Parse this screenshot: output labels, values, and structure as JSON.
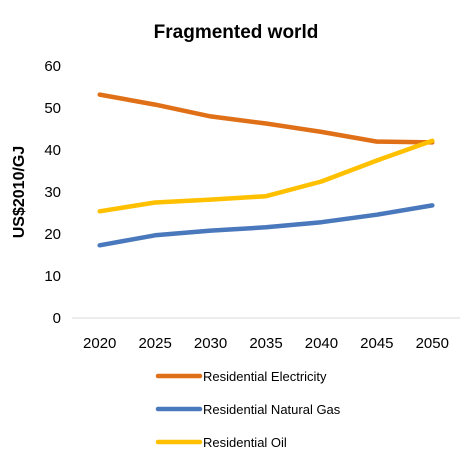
{
  "chart_data": {
    "type": "line",
    "title": "Fragmented world",
    "xlabel": "",
    "ylabel": "US$2010/GJ",
    "x": [
      "2020",
      "2025",
      "2030",
      "2035",
      "2040",
      "2045",
      "2050"
    ],
    "y_ticks": [
      "0",
      "10",
      "20",
      "30",
      "40",
      "50",
      "60"
    ],
    "ylim": [
      0,
      60
    ],
    "grid": false,
    "legend_position": "bottom",
    "series": [
      {
        "name": "Residential Electricity",
        "color": "#E07018",
        "values": [
          53.2,
          50.8,
          48.0,
          46.3,
          44.3,
          42.0,
          41.8
        ]
      },
      {
        "name": "Residential Natural Gas",
        "color": "#4A78BC",
        "values": [
          17.3,
          19.7,
          20.8,
          21.6,
          22.8,
          24.6,
          26.8
        ]
      },
      {
        "name": "Residential Oil",
        "color": "#FFC000",
        "values": [
          25.4,
          27.5,
          28.2,
          29.0,
          32.5,
          37.5,
          42.2
        ]
      }
    ]
  }
}
